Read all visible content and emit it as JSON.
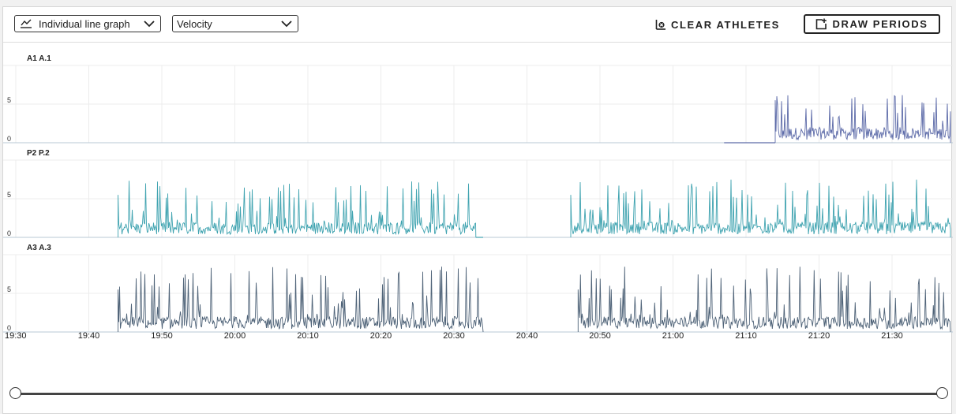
{
  "toolbar": {
    "graph_type": "Individual line graph",
    "metric": "Velocity",
    "clear_label": "CLEAR ATHLETES",
    "draw_label": "DRAW PERIODS"
  },
  "chart_data": {
    "type": "line",
    "x_ticks": [
      "19:30",
      "19:40",
      "19:50",
      "20:00",
      "20:10",
      "20:20",
      "20:30",
      "20:40",
      "20:50",
      "21:00",
      "21:10",
      "21:20",
      "21:30"
    ],
    "x_range": [
      "19:30",
      "21:38"
    ],
    "y_ticks": [
      0,
      5
    ],
    "panels": [
      {
        "label": "A1 A.1",
        "color": "#5c6aa8",
        "active_segments": [
          [
            "21:14",
            "21:38"
          ]
        ],
        "flat_segments": [
          [
            "21:07",
            "21:14"
          ]
        ],
        "typical_peak": 6
      },
      {
        "label": "P2 P.2",
        "color": "#3fa3b0",
        "active_segments": [
          [
            "19:44",
            "20:33"
          ],
          [
            "20:46",
            "21:38"
          ]
        ],
        "flat_segments": [
          [
            "20:33",
            "20:34"
          ]
        ],
        "typical_peak": 7
      },
      {
        "label": "A3 A.3",
        "color": "#4f6378",
        "active_segments": [
          [
            "19:44",
            "20:34"
          ],
          [
            "20:47",
            "21:38"
          ]
        ],
        "flat_segments": [],
        "typical_peak": 8
      }
    ]
  }
}
